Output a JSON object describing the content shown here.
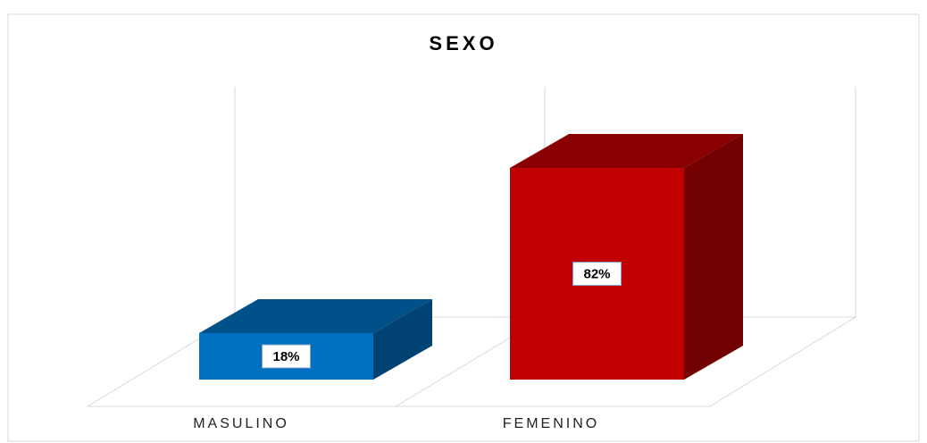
{
  "chart_data": {
    "type": "bar3d",
    "title": "SEXO",
    "categories": [
      "MASULINO",
      "FEMENINO"
    ],
    "values": [
      18,
      82
    ],
    "value_labels": [
      "18%",
      "82%"
    ],
    "colors": [
      "#0070c0",
      "#c00000"
    ]
  }
}
